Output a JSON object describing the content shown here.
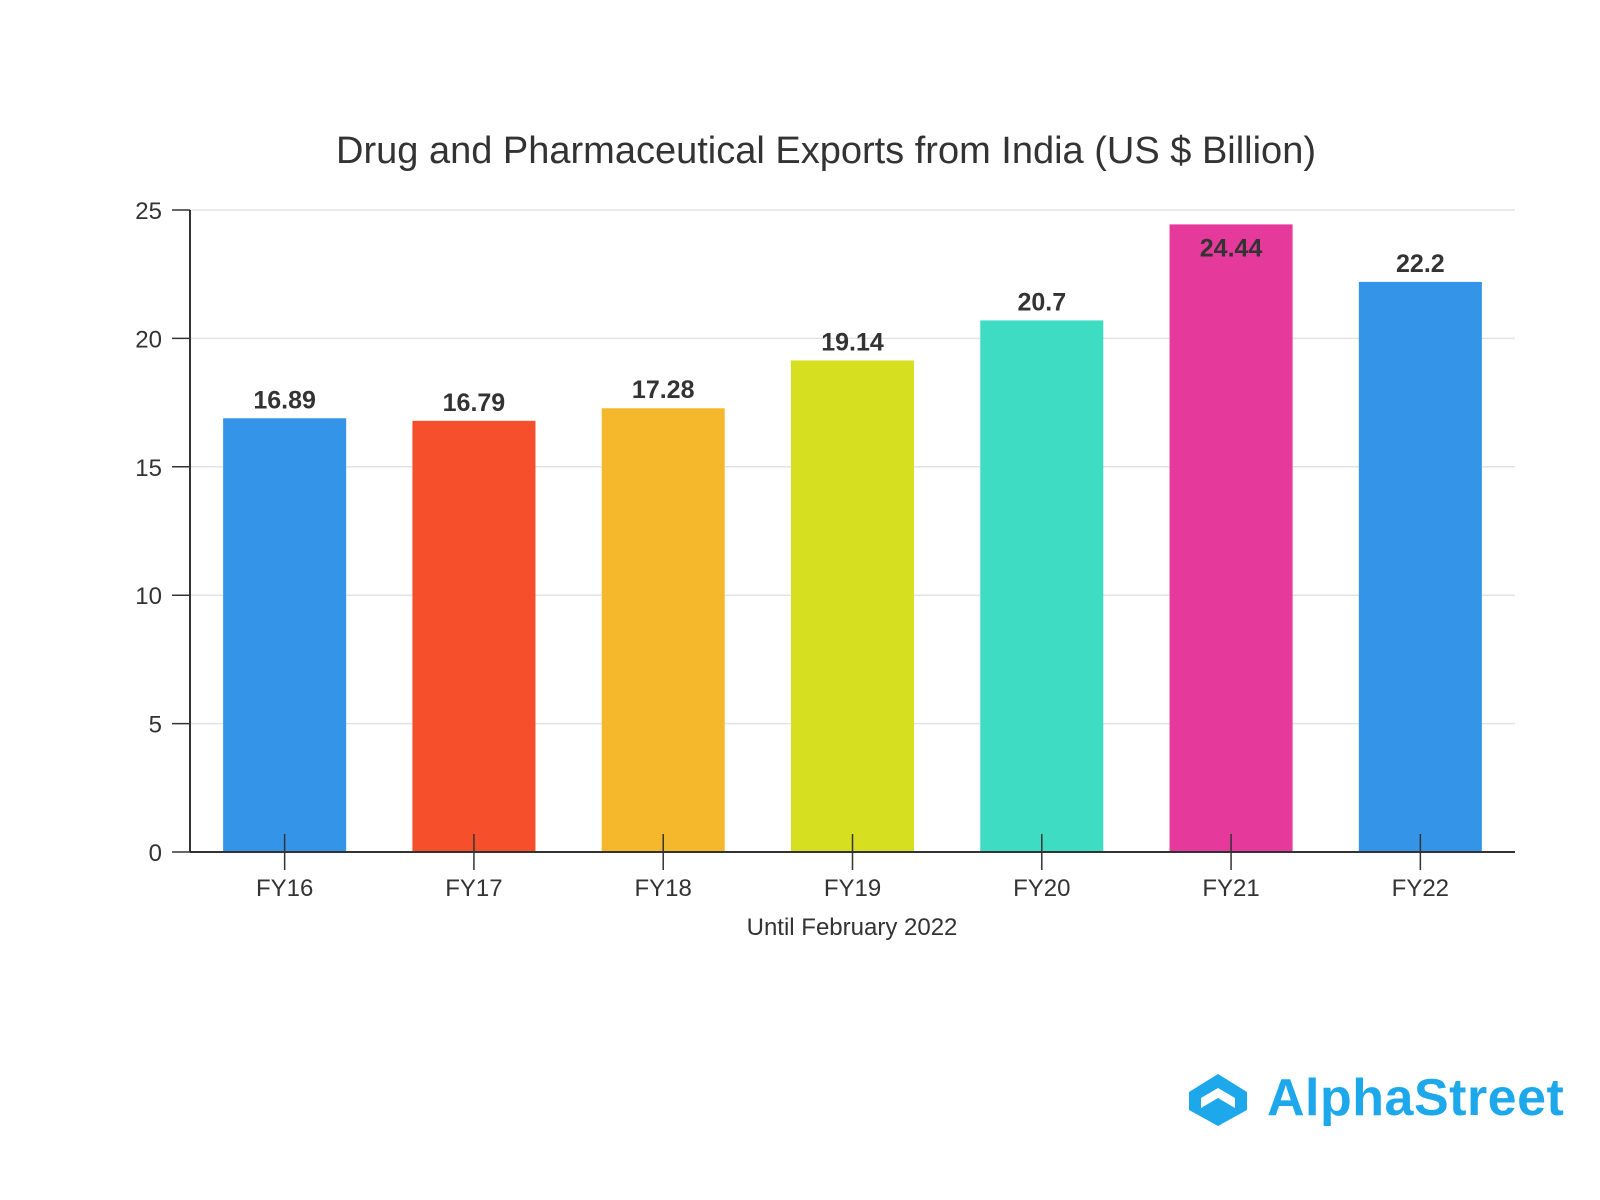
{
  "chart_data": {
    "type": "bar",
    "title": "Drug and Pharmaceutical Exports from India (US $ Billion)",
    "categories": [
      "FY16",
      "FY17",
      "FY18",
      "FY19",
      "FY20",
      "FY21",
      "FY22"
    ],
    "values": [
      16.89,
      16.79,
      17.28,
      19.14,
      20.7,
      24.44,
      22.2
    ],
    "value_labels": [
      "16.89",
      "16.79",
      "17.28",
      "19.14",
      "20.7",
      "24.44",
      "22.2"
    ],
    "colors": [
      "#3394e8",
      "#f5502b",
      "#f5b82d",
      "#d6e021",
      "#3ddcc3",
      "#e53a9c",
      "#3394e8"
    ],
    "xlabel": "",
    "ylabel": "",
    "x_note": "Until February 2022",
    "ylim": [
      0,
      25
    ],
    "yticks": [
      "0",
      "5",
      "10",
      "15",
      "20",
      "25"
    ],
    "grid": true
  },
  "brand": {
    "name": "AlphaStreet",
    "icon": "alphastreet-logo-icon",
    "color": "#1ea8ec"
  }
}
